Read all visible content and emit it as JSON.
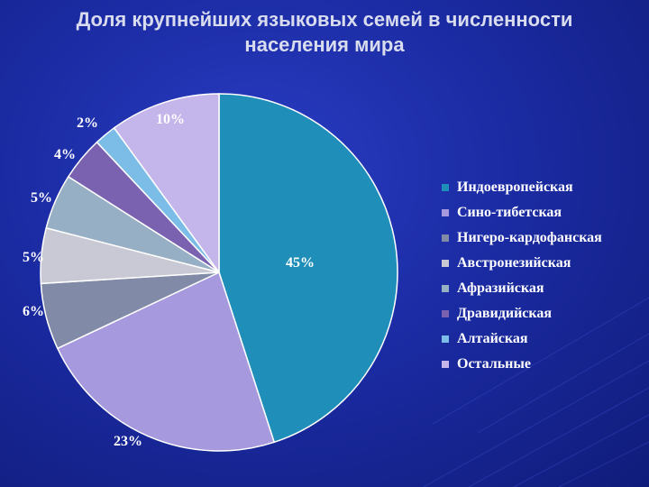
{
  "chart_data": {
    "type": "pie",
    "title_line1": "Доля крупнейших языковых семей в численности",
    "title_line2": "населения мира",
    "categories": [
      "Индоевропейская",
      "Сино-тибетская",
      "Нигеро-кардофанская",
      "Австронезийская",
      "Афразийская",
      "Дравидийская",
      "Алтайская",
      "Остальные"
    ],
    "values": [
      45,
      23,
      6,
      5,
      5,
      4,
      2,
      10
    ],
    "labels": [
      "45%",
      "23%",
      "6%",
      "5%",
      "5%",
      "4%",
      "2%",
      "10%"
    ],
    "colors": [
      "#1f8fb9",
      "#a699de",
      "#818ba8",
      "#c9c9d6",
      "#97afc4",
      "#7a62b0",
      "#7cbde8",
      "#c4b5ea"
    ],
    "legend_position": "right"
  }
}
